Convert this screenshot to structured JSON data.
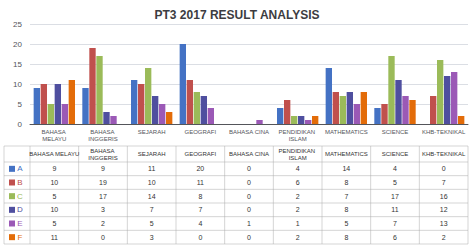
{
  "chart_data": {
    "type": "bar",
    "title": "PT3 2017 RESULT ANALYSIS",
    "categories": [
      "BAHASA MELAYU",
      "BAHASA INGGERIS",
      "SEJARAH",
      "GEOGRAFI",
      "BAHASA CINA",
      "PENDIDIKAN ISLAM",
      "MATHEMATICS",
      "SCIENCE",
      "KHB-TEKNIKAL"
    ],
    "series": [
      {
        "name": "A",
        "color": "#4472C4",
        "values": [
          9,
          9,
          11,
          20,
          0,
          4,
          14,
          4,
          0
        ]
      },
      {
        "name": "B",
        "color": "#C0504D",
        "values": [
          10,
          19,
          10,
          11,
          0,
          6,
          8,
          5,
          7
        ]
      },
      {
        "name": "C",
        "color": "#9BBB59",
        "values": [
          5,
          17,
          14,
          8,
          0,
          2,
          7,
          17,
          16
        ]
      },
      {
        "name": "D",
        "color": "#4F4F9F",
        "values": [
          10,
          3,
          7,
          7,
          0,
          2,
          8,
          11,
          12
        ]
      },
      {
        "name": "E",
        "color": "#9B59B6",
        "values": [
          5,
          2,
          5,
          4,
          1,
          1,
          5,
          7,
          13
        ]
      },
      {
        "name": "F",
        "color": "#E36C09",
        "values": [
          11,
          0,
          3,
          0,
          0,
          2,
          8,
          6,
          2
        ]
      }
    ],
    "ylim": [
      0,
      25
    ],
    "yticks": [
      0,
      5,
      10,
      15,
      20,
      25
    ],
    "grid": true
  }
}
